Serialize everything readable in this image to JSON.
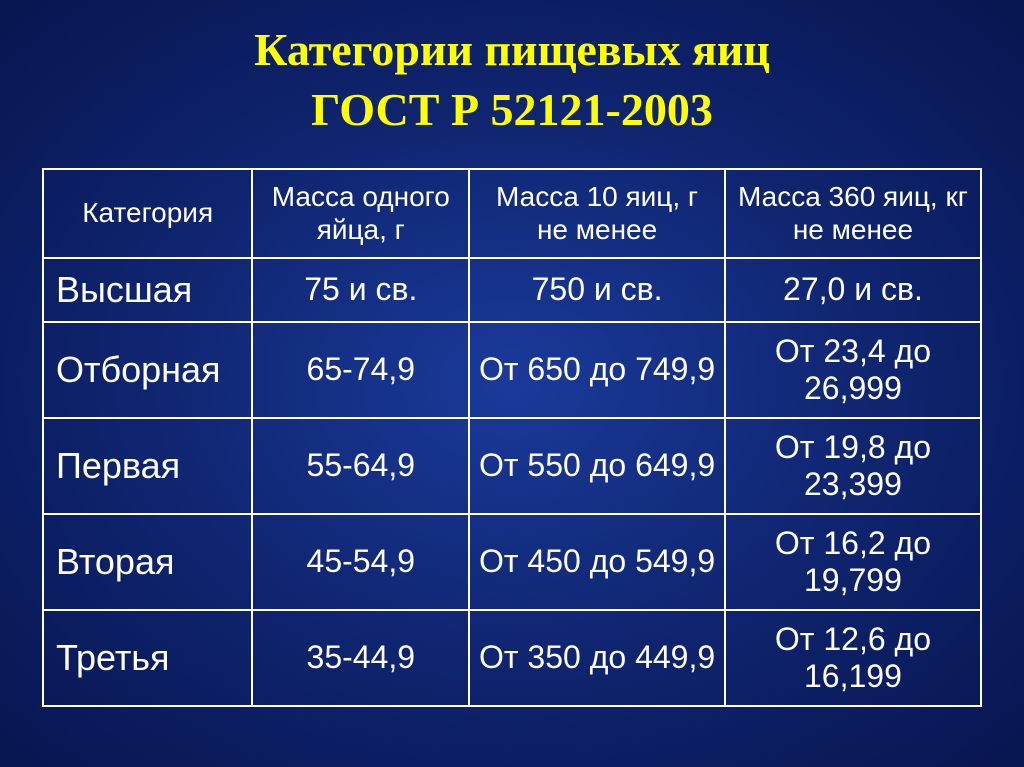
{
  "title": {
    "line1": "Категории пищевых яиц",
    "line2": "ГОСТ Р 52121-2003",
    "color": "#ffff00",
    "fontsize": 46
  },
  "table": {
    "border_color": "#ffffff",
    "text_color": "#ffffff",
    "header_fontsize": 28,
    "category_fontsize": 36,
    "value_fontsize": 32,
    "columns": [
      "Категория",
      "Масса одного яйца, г",
      "Масса 10 яиц, г не менее",
      "Масса 360 яиц, кг не менее"
    ],
    "rows": [
      {
        "category": "Высшая",
        "mass1": "75 и св.",
        "mass10": "750 и св.",
        "mass360": "27,0 и св."
      },
      {
        "category": "Отборная",
        "mass1": "65-74,9",
        "mass10": "От 650 до 749,9",
        "mass360": "От 23,4 до 26,999"
      },
      {
        "category": "Первая",
        "mass1": "55-64,9",
        "mass10": "От 550 до 649,9",
        "mass360": "От 19,8 до 23,399"
      },
      {
        "category": "Вторая",
        "mass1": "45-54,9",
        "mass10": "От 450 до 549,9",
        "mass360": "От 16,2 до 19,799"
      },
      {
        "category": "Третья",
        "mass1": "35-44,9",
        "mass10": "От 350 до 449,9",
        "mass360": "От 12,6 до 16,199"
      }
    ]
  },
  "background": {
    "center_color": "#1a3a9a",
    "mid_color": "#0f2570",
    "edge_color": "#081550"
  }
}
